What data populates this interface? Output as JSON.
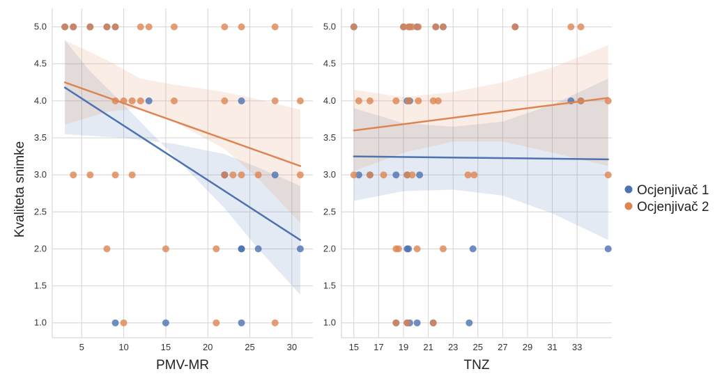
{
  "ylabel": "Kvaliteta snimke",
  "legend": {
    "placement": "right",
    "entries": [
      {
        "label": "Ocjenjivač 1",
        "color": "#4C72B0"
      },
      {
        "label": "Ocjenjivač 2",
        "color": "#DD8452"
      }
    ]
  },
  "chart_data": [
    {
      "type": "scatter",
      "xlabel": "PMV-MR",
      "xlim": [
        1.5,
        32.5
      ],
      "ylim": [
        0.8,
        5.25
      ],
      "xticks": [
        "5",
        "10",
        "15",
        "20",
        "25",
        "30"
      ],
      "xtick_values": [
        5,
        10,
        15,
        20,
        25,
        30
      ],
      "yticks": [
        "1.0",
        "1.5",
        "2.0",
        "2.5",
        "3.0",
        "3.5",
        "4.0",
        "4.5",
        "5.0"
      ],
      "ytick_values": [
        1.0,
        1.5,
        2.0,
        2.5,
        3.0,
        3.5,
        4.0,
        4.5,
        5.0
      ],
      "grid": true,
      "series": [
        {
          "name": "Ocjenjivač 1",
          "color": "#4C72B0",
          "points": [
            [
              3,
              5
            ],
            [
              4,
              5
            ],
            [
              6,
              5
            ],
            [
              8,
              5
            ],
            [
              9,
              5
            ],
            [
              13,
              4
            ],
            [
              24,
              4
            ],
            [
              22,
              3
            ],
            [
              22,
              3
            ],
            [
              28,
              3
            ],
            [
              24,
              2
            ],
            [
              24,
              2
            ],
            [
              26,
              2
            ],
            [
              31,
              2
            ],
            [
              9,
              1
            ],
            [
              15,
              1
            ],
            [
              24,
              1
            ]
          ],
          "fit": {
            "x": [
              3,
              31
            ],
            "y": [
              4.18,
              2.12
            ]
          },
          "ci_upper": [
            [
              3,
              3.55
            ],
            [
              10,
              3.5
            ],
            [
              16,
              3.42
            ],
            [
              22,
              3.28
            ],
            [
              26,
              3.1
            ],
            [
              31,
              2.85
            ]
          ],
          "ci_lower": [
            [
              3,
              4.82
            ],
            [
              6,
              4.4
            ],
            [
              10,
              3.95
            ],
            [
              16,
              3.25
            ],
            [
              22,
              2.55
            ],
            [
              26,
              2.0
            ],
            [
              31,
              1.38
            ]
          ]
        },
        {
          "name": "Ocjenjivač 2",
          "color": "#DD8452",
          "points": [
            [
              3,
              5
            ],
            [
              4,
              5
            ],
            [
              6,
              5
            ],
            [
              8,
              5
            ],
            [
              9,
              5
            ],
            [
              12,
              5
            ],
            [
              13,
              5
            ],
            [
              16,
              5
            ],
            [
              22,
              5
            ],
            [
              24,
              5
            ],
            [
              28,
              5
            ],
            [
              9,
              4
            ],
            [
              10,
              4
            ],
            [
              11,
              4
            ],
            [
              12,
              4
            ],
            [
              16,
              4
            ],
            [
              22,
              4
            ],
            [
              28,
              4
            ],
            [
              31,
              4
            ],
            [
              4,
              3
            ],
            [
              6,
              3
            ],
            [
              9,
              3
            ],
            [
              11,
              3
            ],
            [
              22,
              3
            ],
            [
              23,
              3
            ],
            [
              24,
              3
            ],
            [
              26,
              3
            ],
            [
              31,
              3
            ],
            [
              8,
              2
            ],
            [
              15,
              2
            ],
            [
              21,
              2
            ],
            [
              10,
              1
            ],
            [
              21,
              1
            ],
            [
              28,
              1
            ]
          ],
          "fit": {
            "x": [
              3,
              31
            ],
            "y": [
              4.25,
              3.12
            ]
          },
          "ci_upper": [
            [
              3,
              4.82
            ],
            [
              8,
              4.55
            ],
            [
              12,
              4.3
            ],
            [
              16,
              4.22
            ],
            [
              22,
              4.12
            ],
            [
              26,
              4.02
            ],
            [
              31,
              3.88
            ]
          ],
          "ci_lower": [
            [
              3,
              3.68
            ],
            [
              8,
              3.85
            ],
            [
              12,
              3.9
            ],
            [
              16,
              3.72
            ],
            [
              22,
              3.35
            ],
            [
              26,
              2.95
            ],
            [
              31,
              2.35
            ]
          ]
        }
      ]
    },
    {
      "type": "scatter",
      "xlabel": "TNZ",
      "xlim": [
        14.0,
        35.8
      ],
      "ylim": [
        0.8,
        5.25
      ],
      "xticks": [
        "15",
        "17",
        "19",
        "21",
        "23",
        "25",
        "27",
        "29",
        "31",
        "33"
      ],
      "xtick_values": [
        15,
        17,
        19,
        21,
        23,
        25,
        27,
        29,
        31,
        33
      ],
      "yticks": [
        "1.0",
        "1.5",
        "2.0",
        "2.5",
        "3.0",
        "3.5",
        "4.0",
        "4.5",
        "5.0"
      ],
      "ytick_values": [
        1.0,
        1.5,
        2.0,
        2.5,
        3.0,
        3.5,
        4.0,
        4.5,
        5.0
      ],
      "grid": true,
      "series": [
        {
          "name": "Ocjenjivač 1",
          "color": "#4C72B0",
          "points": [
            [
              15,
              5
            ],
            [
              19,
              5
            ],
            [
              19.5,
              5
            ],
            [
              20.1,
              5
            ],
            [
              21.6,
              5
            ],
            [
              22.2,
              5
            ],
            [
              28,
              5
            ],
            [
              19.3,
              4
            ],
            [
              19.5,
              4
            ],
            [
              32.5,
              4
            ],
            [
              33.3,
              4
            ],
            [
              15.4,
              3
            ],
            [
              16.3,
              3
            ],
            [
              18.4,
              3
            ],
            [
              19.3,
              3
            ],
            [
              20.3,
              3
            ],
            [
              19.3,
              2
            ],
            [
              19.4,
              2
            ],
            [
              24.6,
              2
            ],
            [
              35.5,
              2
            ],
            [
              18.4,
              1
            ],
            [
              19.3,
              1
            ],
            [
              19.5,
              1
            ],
            [
              20.1,
              1
            ],
            [
              21.4,
              1
            ],
            [
              24.3,
              1
            ]
          ],
          "fit": {
            "x": [
              15,
              35.5
            ],
            "y": [
              3.25,
              3.21
            ]
          },
          "ci_upper": [
            [
              15,
              3.9
            ],
            [
              19,
              3.7
            ],
            [
              23,
              3.65
            ],
            [
              27,
              3.72
            ],
            [
              31,
              3.95
            ],
            [
              35.5,
              4.3
            ]
          ],
          "ci_lower": [
            [
              15,
              2.65
            ],
            [
              19,
              2.78
            ],
            [
              23,
              2.8
            ],
            [
              27,
              2.72
            ],
            [
              31,
              2.48
            ],
            [
              35.5,
              2.12
            ]
          ]
        },
        {
          "name": "Ocjenjivač 2",
          "color": "#DD8452",
          "points": [
            [
              15,
              5
            ],
            [
              19,
              5
            ],
            [
              19.4,
              5
            ],
            [
              19.7,
              5
            ],
            [
              20.2,
              5
            ],
            [
              21.6,
              5
            ],
            [
              22.2,
              5
            ],
            [
              28,
              5
            ],
            [
              32.5,
              5
            ],
            [
              33.3,
              5
            ],
            [
              15.4,
              4
            ],
            [
              16.3,
              4
            ],
            [
              18.4,
              4
            ],
            [
              19.4,
              4
            ],
            [
              20.2,
              4
            ],
            [
              21.4,
              4
            ],
            [
              21.8,
              4
            ],
            [
              33.3,
              4
            ],
            [
              35.5,
              4
            ],
            [
              15,
              3
            ],
            [
              16.3,
              3
            ],
            [
              17.4,
              3
            ],
            [
              19.3,
              3
            ],
            [
              19.7,
              3
            ],
            [
              24.2,
              3
            ],
            [
              24.7,
              3
            ],
            [
              35.5,
              3
            ],
            [
              18.4,
              2
            ],
            [
              18.6,
              2
            ],
            [
              20.1,
              2
            ],
            [
              22.2,
              2
            ],
            [
              18.4,
              1
            ],
            [
              19.3,
              1
            ],
            [
              21.4,
              1
            ]
          ],
          "fit": {
            "x": [
              15,
              35.5
            ],
            "y": [
              3.6,
              4.04
            ]
          },
          "ci_upper": [
            [
              15,
              4.15
            ],
            [
              19,
              4.05
            ],
            [
              23,
              4.12
            ],
            [
              27,
              4.25
            ],
            [
              31,
              4.45
            ],
            [
              35.5,
              4.75
            ]
          ],
          "ci_lower": [
            [
              15,
              3.05
            ],
            [
              19,
              3.3
            ],
            [
              23,
              3.45
            ],
            [
              27,
              3.45
            ],
            [
              31,
              3.3
            ],
            [
              35.5,
              3.12
            ]
          ]
        }
      ]
    }
  ]
}
